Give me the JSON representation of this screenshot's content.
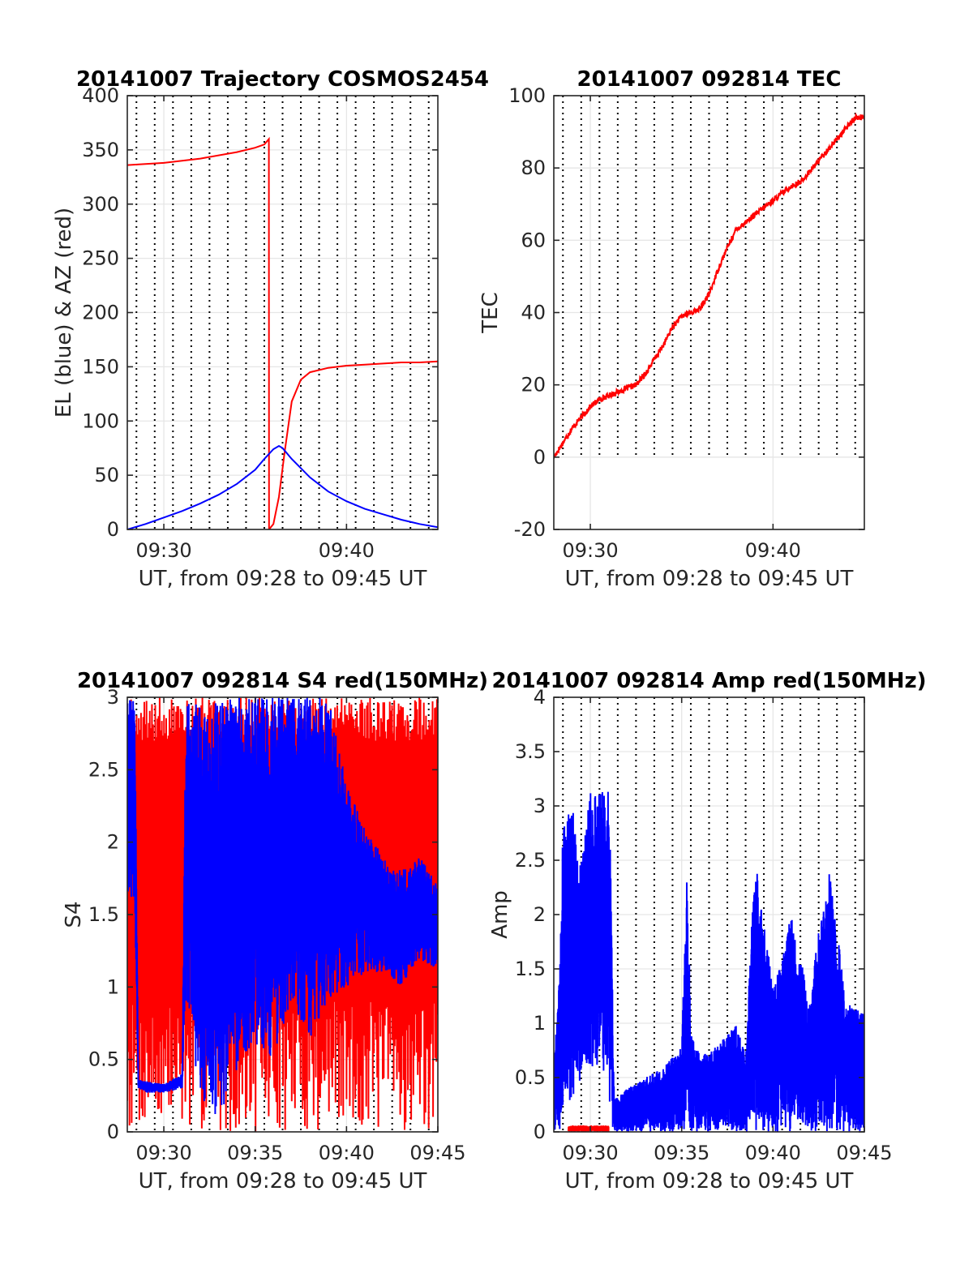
{
  "chart_data": [
    {
      "id": "trajectory",
      "type": "line",
      "title": "20141007 Trajectory COSMOS2454",
      "xlabel": "UT, from 09:28 to 09:45 UT",
      "ylabel": "EL (blue) & AZ (red)",
      "x_unit": "minutes after 09:28",
      "xlim": [
        0,
        17
      ],
      "ylim": [
        0,
        400
      ],
      "xticks": [
        {
          "v": 2,
          "label": "09:30"
        },
        {
          "v": 12,
          "label": "09:40"
        }
      ],
      "yticks": [
        {
          "v": 0,
          "label": "0"
        },
        {
          "v": 50,
          "label": "50"
        },
        {
          "v": 100,
          "label": "100"
        },
        {
          "v": 150,
          "label": "150"
        },
        {
          "v": 200,
          "label": "200"
        },
        {
          "v": 250,
          "label": "250"
        },
        {
          "v": 300,
          "label": "300"
        },
        {
          "v": 350,
          "label": "350"
        },
        {
          "v": 400,
          "label": "400"
        }
      ],
      "vlines": [
        0.5,
        1.5,
        2.5,
        3.5,
        4.5,
        5.5,
        6.5,
        7.5,
        8.5,
        9.5,
        10.5,
        11.5,
        12.5,
        13.5,
        14.5,
        15.5,
        16.5
      ],
      "grid": true,
      "series": [
        {
          "color": "#ff0000",
          "x": [
            0,
            2,
            4,
            6,
            7,
            7.5,
            7.75,
            7.76,
            8,
            8.3,
            8.6,
            9.0,
            9.5,
            10,
            11,
            12,
            13,
            14,
            15,
            16,
            17
          ],
          "y": [
            336,
            338,
            342,
            348,
            352,
            355,
            360,
            0,
            5,
            30,
            70,
            118,
            138,
            145,
            149,
            151,
            152,
            153,
            154,
            154,
            155
          ]
        },
        {
          "color": "#0000ff",
          "x": [
            0,
            1,
            2,
            3,
            4,
            5,
            6,
            7,
            7.5,
            8,
            8.3,
            8.5,
            9,
            10,
            11,
            12,
            13,
            14,
            15,
            16,
            17
          ],
          "y": [
            0,
            5,
            11,
            17,
            24,
            32,
            42,
            55,
            65,
            74,
            77,
            75,
            65,
            48,
            35,
            26,
            19,
            14,
            9,
            5,
            2
          ]
        }
      ]
    },
    {
      "id": "tec",
      "type": "line",
      "title": "20141007 092814 TEC",
      "xlabel": "UT, from 09:28 to 09:45 UT",
      "ylabel": "TEC",
      "x_unit": "minutes after 09:28",
      "xlim": [
        0,
        17
      ],
      "ylim": [
        -20,
        100
      ],
      "xticks": [
        {
          "v": 2,
          "label": "09:30"
        },
        {
          "v": 12,
          "label": "09:40"
        }
      ],
      "yticks": [
        {
          "v": -20,
          "label": "-20"
        },
        {
          "v": 0,
          "label": "0"
        },
        {
          "v": 20,
          "label": "20"
        },
        {
          "v": 40,
          "label": "40"
        },
        {
          "v": 60,
          "label": "60"
        },
        {
          "v": 80,
          "label": "80"
        },
        {
          "v": 100,
          "label": "100"
        }
      ],
      "vlines": [
        0.5,
        1.5,
        2.5,
        3.5,
        4.5,
        5.5,
        6.5,
        7.5,
        8.5,
        9.5,
        10.5,
        11.5,
        12.5,
        13.5,
        14.5,
        15.5,
        16.5
      ],
      "vlines_ymin": 0,
      "grid": true,
      "series": [
        {
          "color": "#ff0000",
          "noise": 0.8,
          "x": [
            0,
            0.5,
            1,
            1.5,
            2,
            2.5,
            3,
            3.5,
            4,
            4.5,
            5,
            5.5,
            6,
            6.5,
            7,
            7.5,
            8,
            8.5,
            9,
            9.5,
            10,
            10.5,
            11,
            11.5,
            12,
            12.5,
            13,
            13.5,
            14,
            14.5,
            15,
            15.5,
            16,
            16.5,
            17
          ],
          "y": [
            0,
            4,
            8,
            11,
            14,
            16,
            17,
            18,
            19,
            20,
            23,
            27,
            31,
            36,
            39,
            40,
            41,
            45,
            52,
            58,
            63,
            65,
            67,
            69,
            71,
            73,
            75,
            76,
            79,
            82,
            85,
            88,
            91,
            94,
            94
          ]
        }
      ]
    },
    {
      "id": "s4",
      "type": "line",
      "title": "20141007 092814 S4 red(150MHz)",
      "xlabel": "UT, from 09:28 to 09:45 UT",
      "ylabel": "S4",
      "x_unit": "minutes after 09:28",
      "xlim": [
        0,
        17
      ],
      "ylim": [
        0,
        3
      ],
      "xticks": [
        {
          "v": 2,
          "label": "09:30"
        },
        {
          "v": 7,
          "label": "09:35"
        },
        {
          "v": 12,
          "label": "09:40"
        },
        {
          "v": 17,
          "label": "09:45"
        }
      ],
      "yticks": [
        {
          "v": 0,
          "label": "0"
        },
        {
          "v": 0.5,
          "label": "0.5"
        },
        {
          "v": 1,
          "label": "1"
        },
        {
          "v": 1.5,
          "label": "1.5"
        },
        {
          "v": 2,
          "label": "2"
        },
        {
          "v": 2.5,
          "label": "2.5"
        },
        {
          "v": 3,
          "label": "3"
        }
      ],
      "vlines": [
        0.5,
        1.5,
        2.5,
        3.5,
        4.5,
        5.5,
        6.5,
        7.5,
        8.5,
        9.5,
        10.5,
        11.5,
        12.5,
        13.5,
        14.5,
        15.5,
        16.5
      ],
      "grid": true,
      "series": [
        {
          "color": "#ff0000",
          "style": "spikes",
          "seed": 7,
          "x": [
            0,
            1,
            2,
            3,
            4,
            5,
            6,
            7,
            8,
            9,
            10,
            11,
            12,
            13,
            14,
            15,
            16,
            17
          ],
          "y_low": [
            0,
            0,
            0,
            0,
            0,
            0,
            0,
            0,
            0,
            0,
            0,
            0,
            0,
            0,
            0,
            0,
            0,
            0
          ],
          "y_high": [
            3,
            3,
            3,
            3,
            3,
            3,
            3,
            3,
            3,
            3,
            3,
            3,
            3,
            3,
            3,
            3,
            3,
            3
          ]
        },
        {
          "color": "#0000ff",
          "style": "band",
          "seed": 11,
          "x": [
            0,
            0.4,
            0.6,
            1,
            2,
            3,
            3.2,
            4,
            5,
            6,
            7,
            8,
            9,
            10,
            11,
            12,
            13,
            14,
            15,
            16,
            17
          ],
          "y_low": [
            1.6,
            1.6,
            0.3,
            0.27,
            0.27,
            0.3,
            0.9,
            0.2,
            0.1,
            0.4,
            0.6,
            0.5,
            0.9,
            0.6,
            0.9,
            1.0,
            1.1,
            1.1,
            1.0,
            1.2,
            1.1
          ],
          "y_high": [
            3,
            3,
            0.36,
            0.35,
            0.33,
            0.4,
            3,
            3,
            3,
            3,
            3,
            3,
            3,
            3,
            3,
            2.4,
            2.1,
            1.9,
            1.8,
            1.9,
            1.7
          ]
        }
      ]
    },
    {
      "id": "amp",
      "type": "line",
      "title": "20141007 092814 Amp red(150MHz)",
      "xlabel": "UT, from 09:28 to 09:45 UT",
      "ylabel": "Amp",
      "x_unit": "minutes after 09:28",
      "xlim": [
        0,
        17
      ],
      "ylim": [
        0,
        4
      ],
      "xticks": [
        {
          "v": 2,
          "label": "09:30"
        },
        {
          "v": 7,
          "label": "09:35"
        },
        {
          "v": 12,
          "label": "09:40"
        },
        {
          "v": 17,
          "label": "09:45"
        }
      ],
      "yticks": [
        {
          "v": 0,
          "label": "0"
        },
        {
          "v": 0.5,
          "label": "0.5"
        },
        {
          "v": 1,
          "label": "1"
        },
        {
          "v": 1.5,
          "label": "1.5"
        },
        {
          "v": 2,
          "label": "2"
        },
        {
          "v": 2.5,
          "label": "2.5"
        },
        {
          "v": 3,
          "label": "3"
        },
        {
          "v": 3.5,
          "label": "3.5"
        },
        {
          "v": 4,
          "label": "4"
        }
      ],
      "vlines": [
        0.5,
        1.5,
        2.5,
        3.5,
        4.5,
        5.5,
        6.5,
        7.5,
        8.5,
        9.5,
        10.5,
        11.5,
        12.5,
        13.5,
        14.5,
        15.5,
        16.5
      ],
      "grid": true,
      "series": [
        {
          "color": "#ff0000",
          "style": "band",
          "seed": 3,
          "x": [
            0.8,
            3.0
          ],
          "y_low": [
            0,
            0
          ],
          "y_high": [
            0.06,
            0.06
          ]
        },
        {
          "color": "#0000ff",
          "style": "band",
          "seed": 5,
          "x": [
            0,
            0.3,
            0.5,
            1,
            1.5,
            2,
            2.5,
            3,
            3.1,
            3.3,
            4,
            5,
            6,
            7,
            7.3,
            7.5,
            8,
            9,
            10,
            10.5,
            11,
            12,
            13,
            14,
            15,
            16,
            17
          ],
          "y_low": [
            0,
            0,
            0.2,
            0.3,
            0.5,
            0.6,
            0.5,
            0.4,
            0.05,
            0,
            0,
            0,
            0,
            0,
            0,
            0,
            0,
            0,
            0,
            0,
            0,
            0,
            0,
            0,
            0,
            0,
            0
          ],
          "y_high": [
            0.6,
            1.5,
            2.9,
            3.0,
            2.5,
            3.2,
            3.1,
            3.2,
            2.5,
            0.3,
            0.4,
            0.5,
            0.6,
            0.8,
            2.55,
            0.9,
            0.7,
            0.8,
            1.0,
            0.7,
            2.6,
            1.3,
            2.0,
            1.2,
            2.55,
            1.2,
            1.1
          ]
        }
      ]
    }
  ],
  "colors": {
    "grid": "#e6e6e6",
    "axis": "#262626",
    "az": "#ff0000",
    "el": "#0000ff"
  }
}
